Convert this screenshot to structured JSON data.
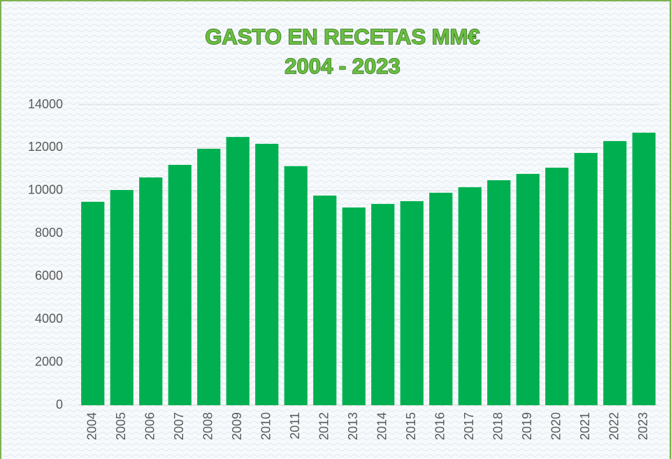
{
  "chart_data": {
    "type": "bar",
    "title": "GASTO EN RECETAS MM€",
    "subtitle": "2004 - 2023",
    "categories": [
      "2004",
      "2005",
      "2006",
      "2007",
      "2008",
      "2009",
      "2010",
      "2011",
      "2012",
      "2013",
      "2014",
      "2015",
      "2016",
      "2017",
      "2018",
      "2019",
      "2020",
      "2021",
      "2022",
      "2023"
    ],
    "values": [
      9480,
      10030,
      10615,
      11200,
      11950,
      12500,
      12180,
      11140,
      9770,
      9215,
      9380,
      9510,
      9900,
      10160,
      10485,
      10780,
      11070,
      11755,
      12310,
      12700
    ],
    "color": "#00b050",
    "ylim": [
      0,
      14000
    ],
    "yticks": [
      0,
      2000,
      4000,
      6000,
      8000,
      10000,
      12000,
      14000
    ],
    "grid": true
  }
}
